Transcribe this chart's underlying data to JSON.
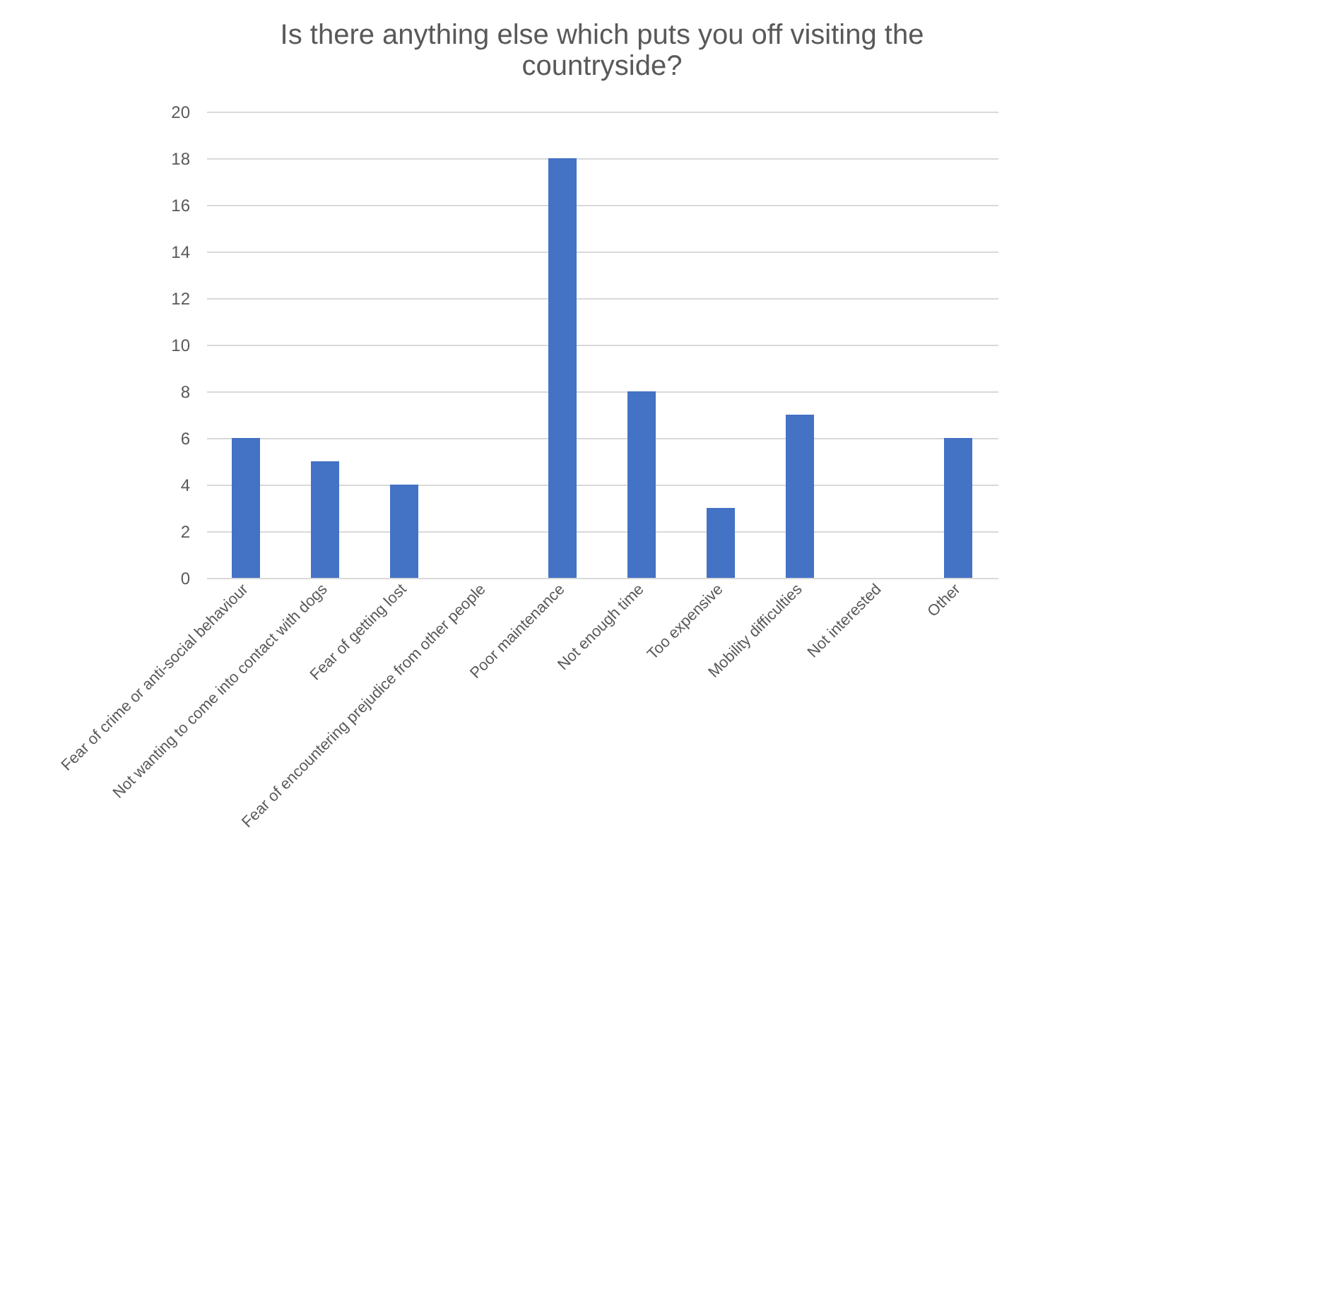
{
  "chart_data": {
    "type": "bar",
    "title": "Is there anything else which puts you off visiting the countryside?",
    "categories": [
      "Fear of crime or anti-social behaviour",
      "Not wanting to come into contact with dogs",
      "Fear of getting lost",
      "Fear of encountering prejudice from other people",
      "Poor maintenance",
      "Not enough time",
      "Too expensive",
      "Mobility difficulties",
      "Not interested",
      "Other"
    ],
    "values": [
      6,
      5,
      4,
      0,
      18,
      8,
      3,
      7,
      0,
      6
    ],
    "color": "#4472c4",
    "ylim": [
      0,
      20
    ],
    "yticks": [
      0,
      2,
      4,
      6,
      8,
      10,
      12,
      14,
      16,
      18,
      20
    ],
    "grid": "y"
  }
}
